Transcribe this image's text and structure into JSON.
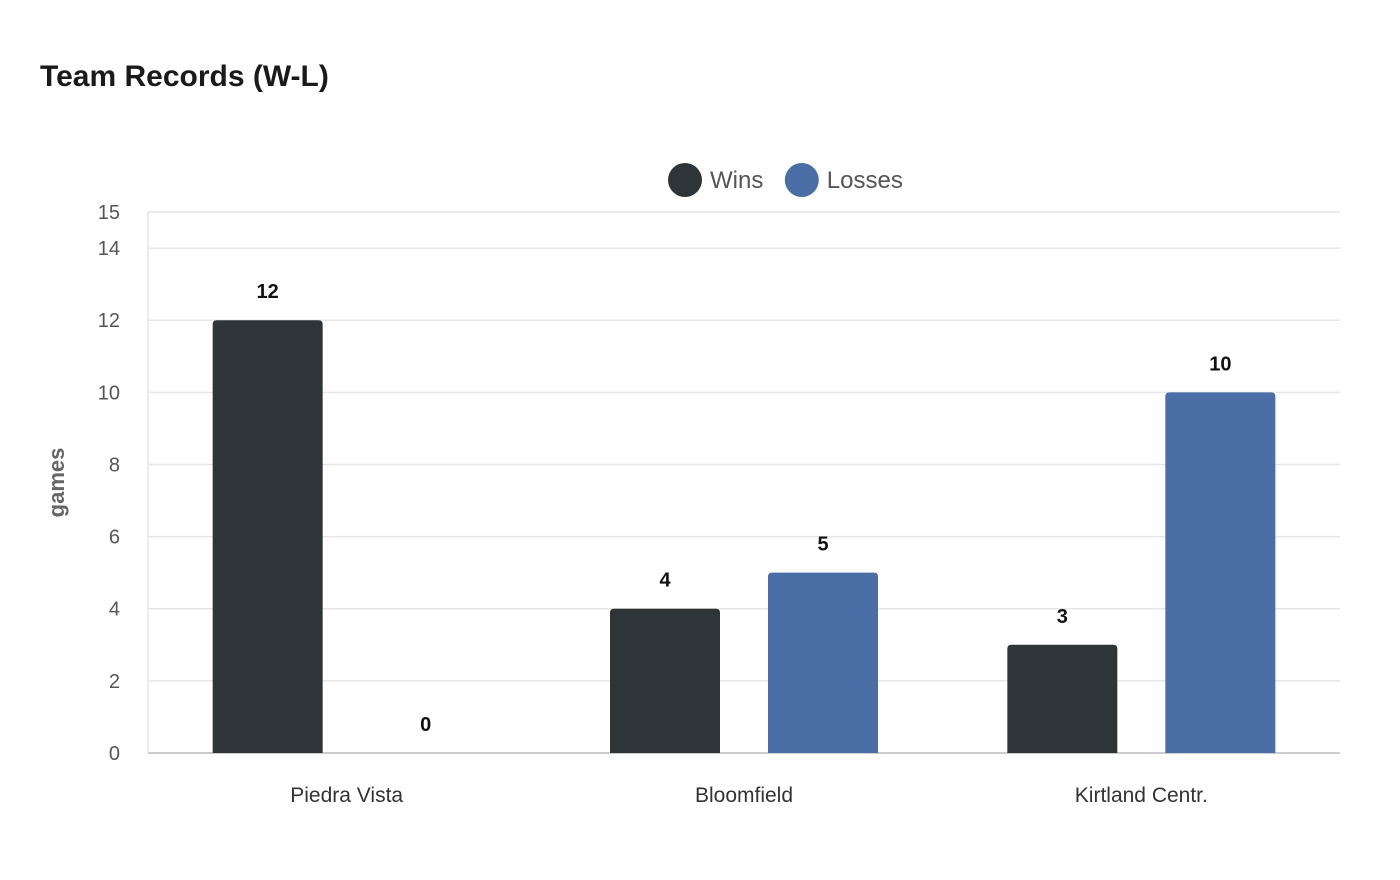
{
  "chart_data": {
    "type": "bar",
    "title": "Team Records (W-L)",
    "xlabel": "",
    "ylabel": "games",
    "categories": [
      "Piedra Vista",
      "Bloomfield",
      "Kirtland Centr."
    ],
    "series": [
      {
        "name": "Wins",
        "values": [
          12,
          4,
          3
        ],
        "color": "#2e3538"
      },
      {
        "name": "Losses",
        "values": [
          0,
          5,
          10
        ],
        "color": "#4a6ea5"
      }
    ],
    "ylim": [
      0,
      15
    ],
    "yticks": [
      0,
      2,
      4,
      6,
      8,
      10,
      12,
      14,
      15
    ],
    "grid": true,
    "legend_position": "top-center"
  }
}
